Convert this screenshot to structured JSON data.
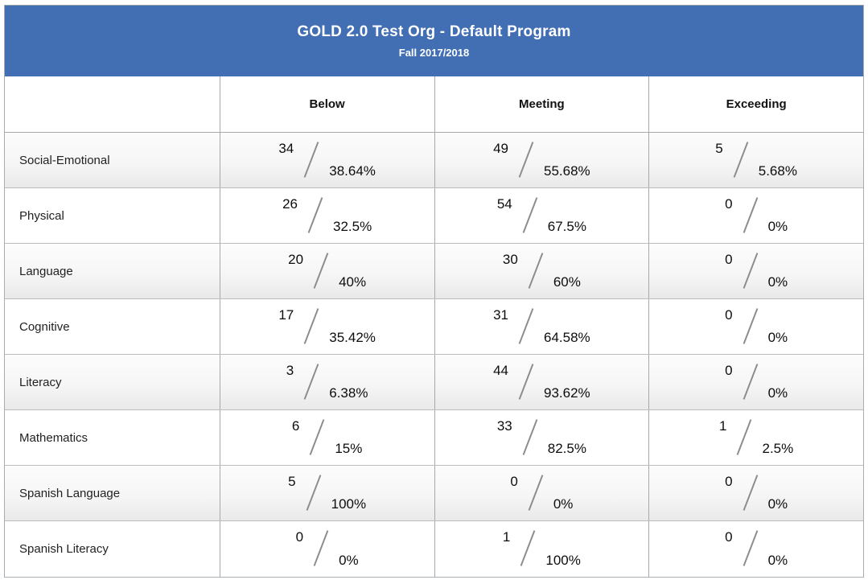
{
  "header": {
    "title": "GOLD 2.0 Test Org - Default Program",
    "subtitle": "Fall 2017/2018",
    "background_color": "#426eb3",
    "text_color": "#ffffff"
  },
  "table": {
    "columns": [
      "Below",
      "Meeting",
      "Exceeding"
    ],
    "rows": [
      {
        "label": "Social-Emotional",
        "below": {
          "count": "34",
          "percent": "38.64%"
        },
        "meeting": {
          "count": "49",
          "percent": "55.68%"
        },
        "exceeding": {
          "count": "5",
          "percent": "5.68%"
        }
      },
      {
        "label": "Physical",
        "below": {
          "count": "26",
          "percent": "32.5%"
        },
        "meeting": {
          "count": "54",
          "percent": "67.5%"
        },
        "exceeding": {
          "count": "0",
          "percent": "0%"
        }
      },
      {
        "label": "Language",
        "below": {
          "count": "20",
          "percent": "40%"
        },
        "meeting": {
          "count": "30",
          "percent": "60%"
        },
        "exceeding": {
          "count": "0",
          "percent": "0%"
        }
      },
      {
        "label": "Cognitive",
        "below": {
          "count": "17",
          "percent": "35.42%"
        },
        "meeting": {
          "count": "31",
          "percent": "64.58%"
        },
        "exceeding": {
          "count": "0",
          "percent": "0%"
        }
      },
      {
        "label": "Literacy",
        "below": {
          "count": "3",
          "percent": "6.38%"
        },
        "meeting": {
          "count": "44",
          "percent": "93.62%"
        },
        "exceeding": {
          "count": "0",
          "percent": "0%"
        }
      },
      {
        "label": "Mathematics",
        "below": {
          "count": "6",
          "percent": "15%"
        },
        "meeting": {
          "count": "33",
          "percent": "82.5%"
        },
        "exceeding": {
          "count": "1",
          "percent": "2.5%"
        }
      },
      {
        "label": "Spanish Language",
        "below": {
          "count": "5",
          "percent": "100%"
        },
        "meeting": {
          "count": "0",
          "percent": "0%"
        },
        "exceeding": {
          "count": "0",
          "percent": "0%"
        }
      },
      {
        "label": "Spanish Literacy",
        "below": {
          "count": "0",
          "percent": "0%"
        },
        "meeting": {
          "count": "1",
          "percent": "100%"
        },
        "exceeding": {
          "count": "0",
          "percent": "0%"
        }
      }
    ]
  }
}
